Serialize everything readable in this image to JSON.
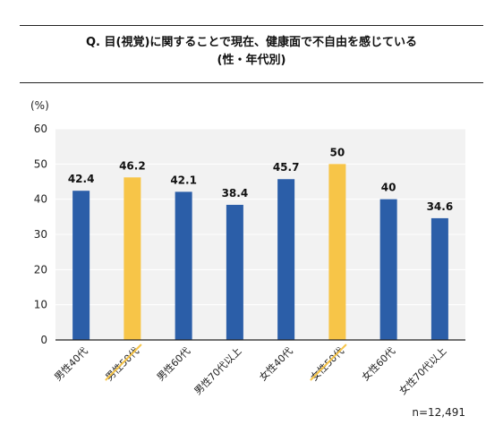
{
  "title_line1": "Q. 目(視覚)に関することで現在、健康面で不自由を感じている",
  "title_line2": "(性・年代別)",
  "sample_note": "n=12,491",
  "colors": {
    "highlight": "#f7c548",
    "default": "#2b5ea8",
    "plot_bg": "#f2f2f2",
    "grid": "#ffffff"
  },
  "chart_data": {
    "type": "bar",
    "ylabel": "(%)",
    "ylim": [
      0,
      60
    ],
    "yticks": [
      0,
      10,
      20,
      30,
      40,
      50,
      60
    ],
    "grid": true,
    "categories": [
      "男性40代",
      "男性50代",
      "男性60代",
      "男性70代以上",
      "女性40代",
      "女性50代",
      "女性60代",
      "女性70代以上"
    ],
    "values": [
      42.4,
      46.2,
      42.1,
      38.4,
      45.7,
      50,
      40,
      34.6
    ],
    "value_labels": [
      "42.4",
      "46.2",
      "42.1",
      "38.4",
      "45.7",
      "50",
      "40",
      "34.6"
    ],
    "highlighted": [
      "男性50代",
      "女性50代"
    ]
  }
}
